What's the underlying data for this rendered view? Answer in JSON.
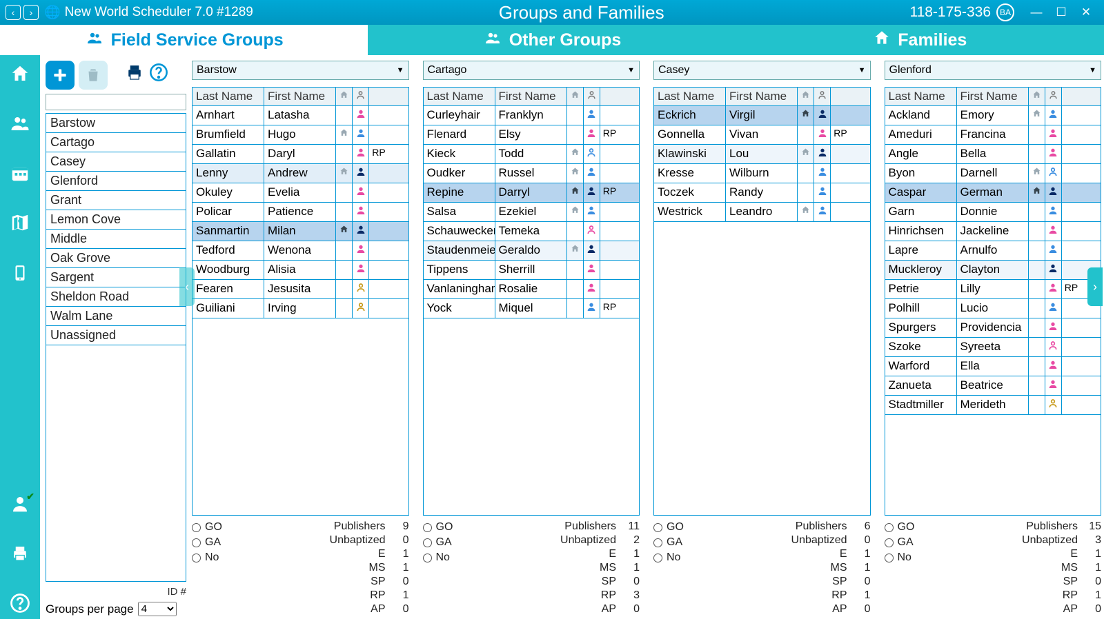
{
  "colors": {
    "titlebar_top": "#00a8d6",
    "titlebar_bottom": "#0096c0",
    "accent_teal": "#22c2cc",
    "accent_blue": "#0096d6",
    "row_border": "#0096d6",
    "hl_light": "#e2eef8",
    "hl_med": "#b7d4ee",
    "icon_pink": "#e84aa3",
    "icon_blue": "#3a8de0",
    "icon_navy": "#0a2a66",
    "icon_gold": "#c79a1a",
    "icon_home": "#9aa9b3"
  },
  "titlebar": {
    "app_title": "New World Scheduler 7.0 #1289",
    "page_title": "Groups and Families",
    "account": "118-175-336",
    "badge": "BA"
  },
  "tabs": [
    {
      "id": "fsg",
      "label": "Field Service Groups",
      "icon": "👥",
      "active": true
    },
    {
      "id": "other",
      "label": "Other Groups",
      "icon": "👥",
      "active": false
    },
    {
      "id": "families",
      "label": "Families",
      "icon": "🏠",
      "active": false
    }
  ],
  "side_icons": [
    "home",
    "people",
    "calendar",
    "map",
    "phone",
    "user",
    "print",
    "help"
  ],
  "left": {
    "search": "",
    "groups": [
      "Barstow",
      "Cartago",
      "Casey",
      "Glenford",
      "Grant",
      "Lemon Cove",
      "Middle",
      "Oak Grove",
      "Sargent",
      "Sheldon Road",
      "Walm Lane",
      "Unassigned"
    ],
    "id_label": "ID #",
    "gpp_label": "Groups per page",
    "gpp_value": "4"
  },
  "col_headers": {
    "last": "Last Name",
    "first": "First Name"
  },
  "stat_radio_labels": [
    "GO",
    "GA",
    "No"
  ],
  "stat_row_labels": [
    "Publishers",
    "Unbaptized",
    "E",
    "MS",
    "SP",
    "RP",
    "AP"
  ],
  "columns": [
    {
      "name": "Barstow",
      "rows": [
        {
          "last": "Arnhart",
          "first": "Latasha",
          "home": "",
          "person": "pink",
          "rp": ""
        },
        {
          "last": "Brumfield",
          "first": "Hugo",
          "home": "g",
          "person": "blue",
          "rp": ""
        },
        {
          "last": "Gallatin",
          "first": "Daryl",
          "home": "",
          "person": "pink",
          "rp": "RP"
        },
        {
          "last": "Lenny",
          "first": "Andrew",
          "home": "g",
          "person": "navy",
          "rp": "",
          "hl": "light"
        },
        {
          "last": "Okuley",
          "first": "Evelia",
          "home": "",
          "person": "pink",
          "rp": ""
        },
        {
          "last": "Policar",
          "first": "Patience",
          "home": "",
          "person": "pink",
          "rp": ""
        },
        {
          "last": "Sanmartin",
          "first": "Milan",
          "home": "d",
          "person": "navy",
          "rp": "",
          "hl": "med"
        },
        {
          "last": "Tedford",
          "first": "Wenona",
          "home": "",
          "person": "pink",
          "rp": ""
        },
        {
          "last": "Woodburg",
          "first": "Alisia",
          "home": "",
          "person": "pink",
          "rp": ""
        },
        {
          "last": "Fearen",
          "first": "Jesusita",
          "home": "",
          "person": "out-gold",
          "rp": ""
        },
        {
          "last": "Guiliani",
          "first": "Irving",
          "home": "",
          "person": "out-gold",
          "rp": ""
        }
      ],
      "stats": {
        "Publishers": 9,
        "Unbaptized": 0,
        "E": 1,
        "MS": 1,
        "SP": 0,
        "RP": 1,
        "AP": 0
      }
    },
    {
      "name": "Cartago",
      "rows": [
        {
          "last": "Curleyhair",
          "first": "Franklyn",
          "home": "",
          "person": "blue",
          "rp": ""
        },
        {
          "last": "Flenard",
          "first": "Elsy",
          "home": "",
          "person": "pink",
          "rp": "RP"
        },
        {
          "last": "Kieck",
          "first": "Todd",
          "home": "g",
          "person": "out-blue",
          "rp": ""
        },
        {
          "last": "Oudker",
          "first": "Russel",
          "home": "g",
          "person": "blue",
          "rp": ""
        },
        {
          "last": "Repine",
          "first": "Darryl",
          "home": "d",
          "person": "navy",
          "rp": "RP",
          "hl": "med"
        },
        {
          "last": "Salsa",
          "first": "Ezekiel",
          "home": "g",
          "person": "blue",
          "rp": ""
        },
        {
          "last": "Schauwecker",
          "first": "Temeka",
          "home": "",
          "person": "out-pink",
          "rp": ""
        },
        {
          "last": "Staudenmeier",
          "first": "Geraldo",
          "home": "g",
          "person": "navy",
          "rp": "",
          "hl": "lighter"
        },
        {
          "last": "Tippens",
          "first": "Sherrill",
          "home": "",
          "person": "pink",
          "rp": ""
        },
        {
          "last": "Vanlaningham",
          "first": "Rosalie",
          "home": "",
          "person": "pink",
          "rp": ""
        },
        {
          "last": "Yock",
          "first": "Miquel",
          "home": "",
          "person": "blue",
          "rp": "RP"
        }
      ],
      "stats": {
        "Publishers": 11,
        "Unbaptized": 2,
        "E": 1,
        "MS": 1,
        "SP": 0,
        "RP": 3,
        "AP": 0
      }
    },
    {
      "name": "Casey",
      "rows": [
        {
          "last": "Eckrich",
          "first": "Virgil",
          "home": "d",
          "person": "navy",
          "rp": "",
          "hl": "med"
        },
        {
          "last": "Gonnella",
          "first": "Vivan",
          "home": "",
          "person": "pink",
          "rp": "RP"
        },
        {
          "last": "Klawinski",
          "first": "Lou",
          "home": "g",
          "person": "navy",
          "rp": "",
          "hl": "lighter"
        },
        {
          "last": "Kresse",
          "first": "Wilburn",
          "home": "",
          "person": "blue",
          "rp": ""
        },
        {
          "last": "Toczek",
          "first": "Randy",
          "home": "",
          "person": "blue",
          "rp": ""
        },
        {
          "last": "Westrick",
          "first": "Leandro",
          "home": "g",
          "person": "blue",
          "rp": ""
        }
      ],
      "stats": {
        "Publishers": 6,
        "Unbaptized": 0,
        "E": 1,
        "MS": 1,
        "SP": 0,
        "RP": 1,
        "AP": 0
      }
    },
    {
      "name": "Glenford",
      "rows": [
        {
          "last": "Ackland",
          "first": "Emory",
          "home": "g",
          "person": "blue",
          "rp": ""
        },
        {
          "last": "Ameduri",
          "first": "Francina",
          "home": "",
          "person": "pink",
          "rp": ""
        },
        {
          "last": "Angle",
          "first": "Bella",
          "home": "",
          "person": "pink",
          "rp": ""
        },
        {
          "last": "Byon",
          "first": "Darnell",
          "home": "g",
          "person": "out-blue",
          "rp": ""
        },
        {
          "last": "Caspar",
          "first": "German",
          "home": "d",
          "person": "navy",
          "rp": "",
          "hl": "med"
        },
        {
          "last": "Garn",
          "first": "Donnie",
          "home": "",
          "person": "blue",
          "rp": ""
        },
        {
          "last": "Hinrichsen",
          "first": "Jackeline",
          "home": "",
          "person": "pink",
          "rp": ""
        },
        {
          "last": "Lapre",
          "first": "Arnulfo",
          "home": "",
          "person": "blue",
          "rp": ""
        },
        {
          "last": "Muckleroy",
          "first": "Clayton",
          "home": "",
          "person": "navy",
          "rp": "",
          "hl": "lighter"
        },
        {
          "last": "Petrie",
          "first": "Lilly",
          "home": "",
          "person": "pink",
          "rp": "RP"
        },
        {
          "last": "Polhill",
          "first": "Lucio",
          "home": "",
          "person": "blue",
          "rp": ""
        },
        {
          "last": "Spurgers",
          "first": "Providencia",
          "home": "",
          "person": "pink",
          "rp": ""
        },
        {
          "last": "Szoke",
          "first": "Syreeta",
          "home": "",
          "person": "out-pink",
          "rp": ""
        },
        {
          "last": "Warford",
          "first": "Ella",
          "home": "",
          "person": "pink",
          "rp": ""
        },
        {
          "last": "Zanueta",
          "first": "Beatrice",
          "home": "",
          "person": "pink",
          "rp": ""
        },
        {
          "last": "Stadtmiller",
          "first": "Merideth",
          "home": "",
          "person": "out-gold",
          "rp": ""
        }
      ],
      "stats": {
        "Publishers": 15,
        "Unbaptized": 3,
        "E": 1,
        "MS": 1,
        "SP": 0,
        "RP": 1,
        "AP": 0
      }
    }
  ]
}
